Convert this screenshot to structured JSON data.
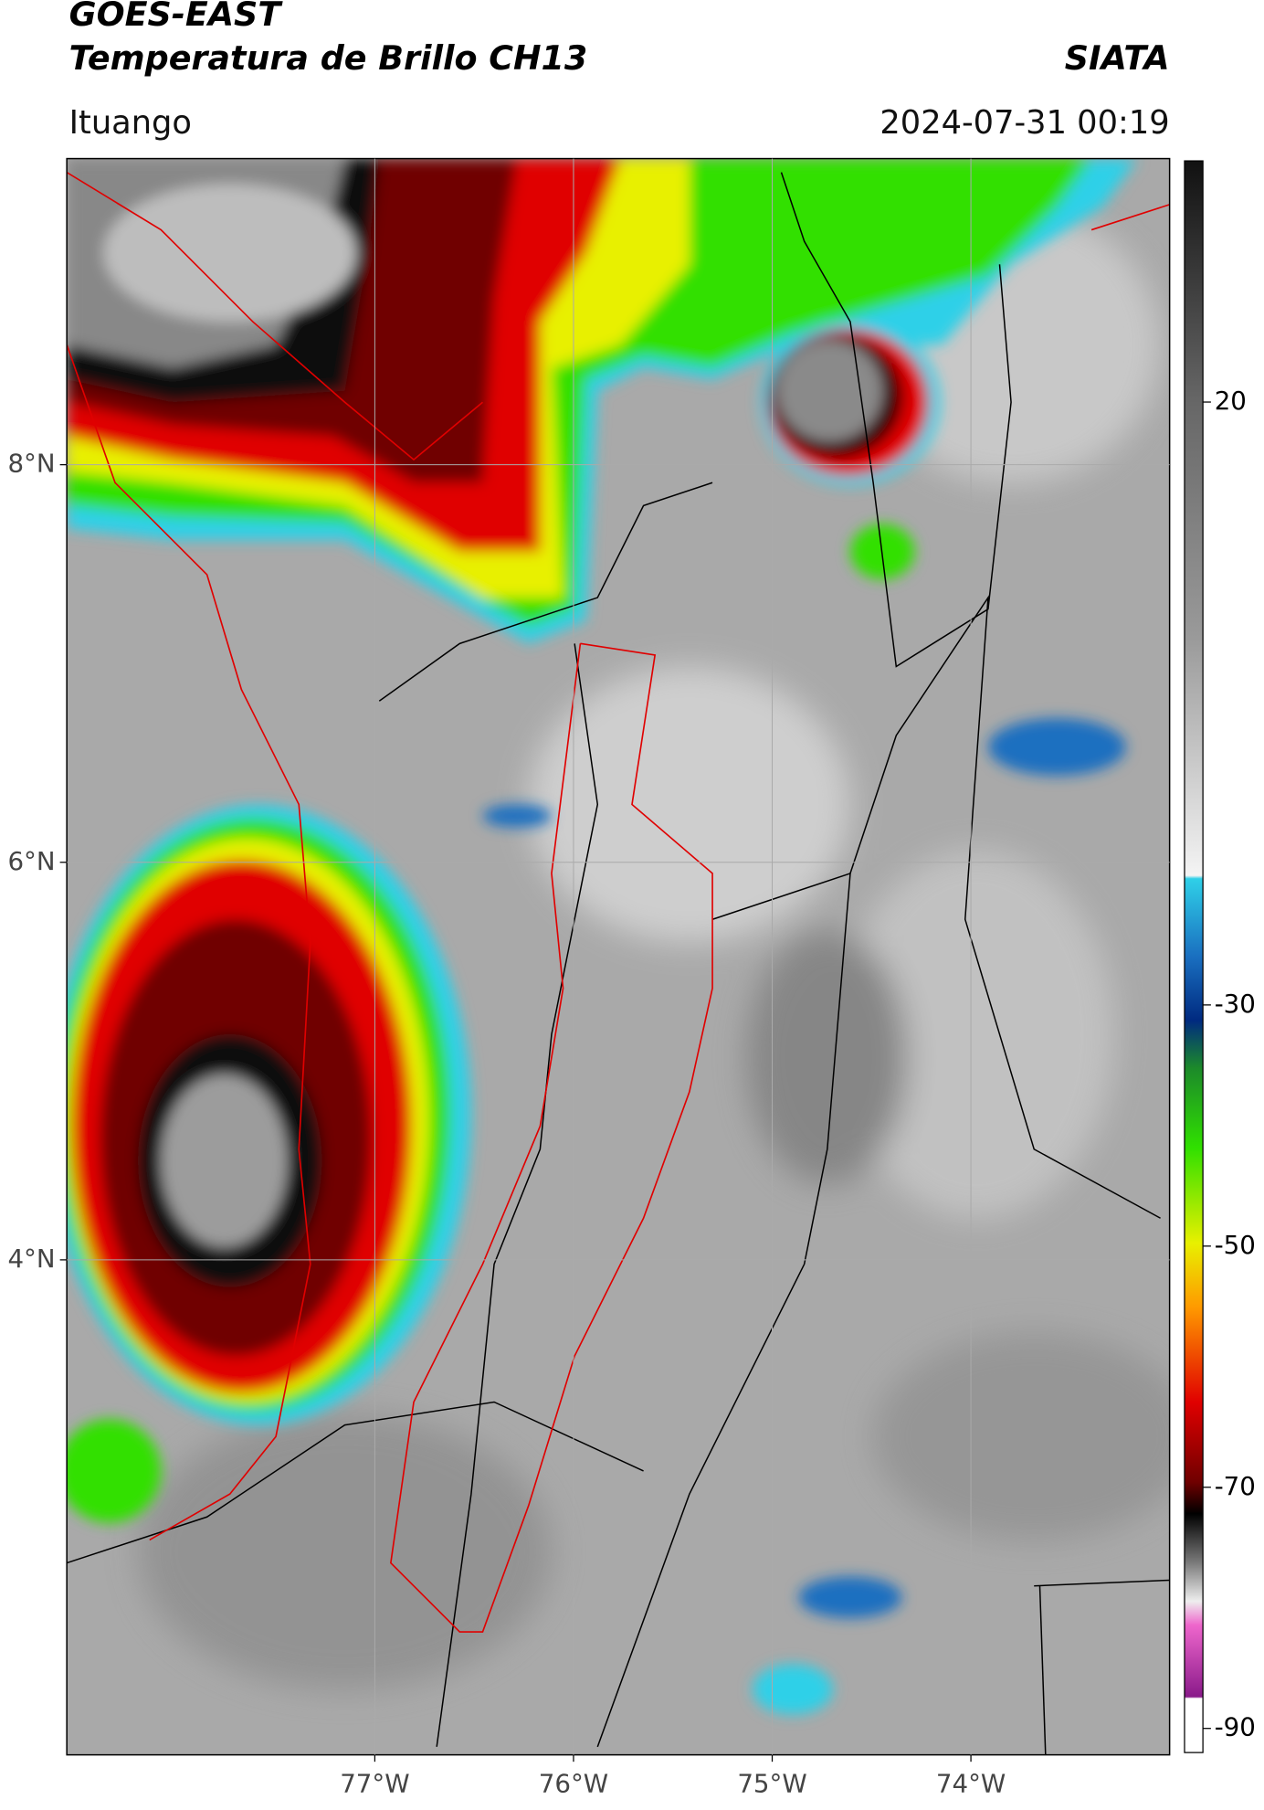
{
  "header": {
    "title": "GOES-EAST",
    "subtitle": "Temperatura de Brillo CH13",
    "source": "SIATA",
    "location": "Ituango",
    "timestamp": "2024-07-31 00:19"
  },
  "map": {
    "xlim": [
      -78.55,
      -73.0
    ],
    "ylim": [
      1.51,
      9.54
    ],
    "xticks": [
      {
        "value": -77,
        "label": "77°W"
      },
      {
        "value": -76,
        "label": "76°W"
      },
      {
        "value": -75,
        "label": "75°W"
      },
      {
        "value": -74,
        "label": "74°W"
      }
    ],
    "yticks": [
      {
        "value": 8,
        "label": "8°N"
      },
      {
        "value": 6,
        "label": "6°N"
      },
      {
        "value": 4,
        "label": "4°N"
      }
    ],
    "grid": true
  },
  "colorbar": {
    "lim": [
      -92,
      40
    ],
    "ticks": [
      20,
      -30,
      -50,
      -70,
      -90
    ]
  }
}
